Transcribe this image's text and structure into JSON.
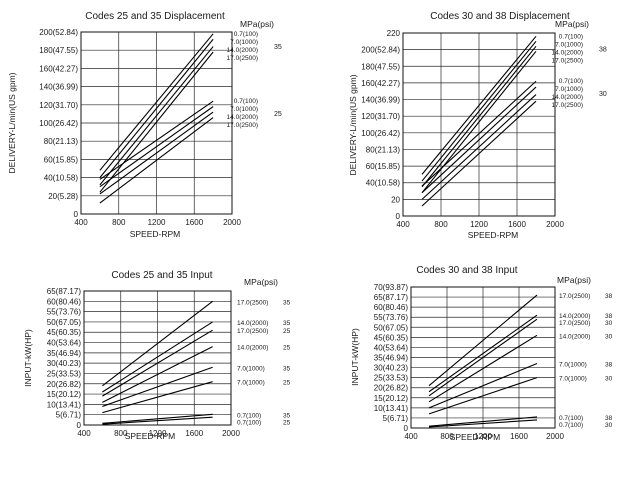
{
  "chart_data": [
    {
      "type": "line",
      "title": "Codes 25 and 35 Displacement",
      "xlabel": "SPEED-RPM",
      "ylabel": "DELIVERY-L/min(US gpm)",
      "xlim": [
        400,
        2000
      ],
      "ylim": [
        0,
        200
      ],
      "x_ticks": [
        "400",
        "800",
        "1200",
        "1600",
        "2000"
      ],
      "y_ticks": [
        "0",
        "20(5.28)",
        "40(10.58)",
        "60(15.85)",
        "80(21.13)",
        "100(26.42)",
        "120(31.70)",
        "140(36.99)",
        "160(42.27)",
        "180(47.55)",
        "200(52.84)"
      ],
      "legend_header": "MPa(psi)",
      "grid": true,
      "groups": [
        {
          "code": "35",
          "labels": [
            "0.7(100)",
            "7.0(1000)",
            "14.0(2000)",
            "17.0(2500)"
          ]
        },
        {
          "code": "25",
          "labels": [
            "0.7(100)",
            "7.0(1000)",
            "14.0(2000)",
            "17.0(2500)"
          ]
        }
      ],
      "series": [
        {
          "group": "35",
          "x": [
            600,
            1800
          ],
          "y": [
            48,
            198
          ]
        },
        {
          "group": "35",
          "x": [
            600,
            1800
          ],
          "y": [
            40,
            192
          ]
        },
        {
          "group": "35",
          "x": [
            600,
            1800
          ],
          "y": [
            32,
            184
          ]
        },
        {
          "group": "35",
          "x": [
            600,
            1800
          ],
          "y": [
            24,
            178
          ]
        },
        {
          "group": "25",
          "x": [
            600,
            1800
          ],
          "y": [
            38,
            124
          ]
        },
        {
          "group": "25",
          "x": [
            600,
            1800
          ],
          "y": [
            30,
            118
          ]
        },
        {
          "group": "25",
          "x": [
            600,
            1800
          ],
          "y": [
            22,
            112
          ]
        },
        {
          "group": "25",
          "x": [
            600,
            1800
          ],
          "y": [
            12,
            106
          ]
        }
      ]
    },
    {
      "type": "line",
      "title": "Codes 30 and 38 Displacement",
      "xlabel": "SPEED-RPM",
      "ylabel": "DELIVERY-L/min(US gpm)",
      "xlim": [
        400,
        2000
      ],
      "ylim": [
        0,
        220
      ],
      "x_ticks": [
        "400",
        "800",
        "1200",
        "1600",
        "2000"
      ],
      "y_ticks": [
        "0",
        "20",
        "40(10.58)",
        "60(15.85)",
        "80(21.13)",
        "100(26.42)",
        "120(31.70)",
        "140(36.99)",
        "160(42.27)",
        "180(47.55)",
        "200(52.84)",
        "220"
      ],
      "legend_header": "MPa(psi)",
      "grid": true,
      "groups": [
        {
          "code": "38",
          "labels": [
            "0.7(100)",
            "7.0(1000)",
            "14.0(2000)",
            "17.0(2500)"
          ]
        },
        {
          "code": "30",
          "labels": [
            "0.7(100)",
            "7.0(1000)",
            "14.0(2000)",
            "17.0(2500)"
          ]
        }
      ],
      "series": [
        {
          "group": "38",
          "x": [
            600,
            1800
          ],
          "y": [
            50,
            216
          ]
        },
        {
          "group": "38",
          "x": [
            600,
            1800
          ],
          "y": [
            42,
            210
          ]
        },
        {
          "group": "38",
          "x": [
            600,
            1800
          ],
          "y": [
            35,
            204
          ]
        },
        {
          "group": "38",
          "x": [
            600,
            1800
          ],
          "y": [
            28,
            198
          ]
        },
        {
          "group": "30",
          "x": [
            600,
            1800
          ],
          "y": [
            36,
            162
          ]
        },
        {
          "group": "30",
          "x": [
            600,
            1800
          ],
          "y": [
            28,
            155
          ]
        },
        {
          "group": "30",
          "x": [
            600,
            1800
          ],
          "y": [
            20,
            146
          ]
        },
        {
          "group": "30",
          "x": [
            600,
            1800
          ],
          "y": [
            12,
            138
          ]
        }
      ]
    },
    {
      "type": "line",
      "title": "Codes 25 and 35 Input",
      "xlabel": "SPEED-RPM",
      "ylabel": "INPUT-kW(HP)",
      "xlim": [
        400,
        2000
      ],
      "ylim": [
        0,
        65
      ],
      "x_ticks": [
        "400",
        "800",
        "1200",
        "1600",
        "2000"
      ],
      "y_ticks": [
        "0",
        "5(6.71)",
        "10(13.41)",
        "15(20.12)",
        "20(26.82)",
        "25(33.53)",
        "30(40.23)",
        "35(46.94)",
        "40(53.64)",
        "45(60.35)",
        "50(67.05)",
        "55(73.76)",
        "60(80.46)",
        "65(87.17)"
      ],
      "legend_header": "MPa(psi)",
      "grid": true,
      "line_labels": [
        "17.0(2500)",
        "14.0(2000)",
        "17.0(2500)",
        "14.0(2000)",
        "7.0(1000)",
        "7.0(1000)",
        "0.7(100)",
        "0.7(100)"
      ],
      "line_codes": [
        "35",
        "35",
        "25",
        "25",
        "35",
        "25",
        "35",
        "25"
      ],
      "series": [
        {
          "x": [
            600,
            1800
          ],
          "y": [
            19,
            60
          ]
        },
        {
          "x": [
            600,
            1800
          ],
          "y": [
            16,
            50
          ]
        },
        {
          "x": [
            600,
            1800
          ],
          "y": [
            14,
            46
          ]
        },
        {
          "x": [
            600,
            1800
          ],
          "y": [
            11,
            38
          ]
        },
        {
          "x": [
            600,
            1800
          ],
          "y": [
            9,
            28
          ]
        },
        {
          "x": [
            600,
            1800
          ],
          "y": [
            6,
            21
          ]
        },
        {
          "x": [
            600,
            1800
          ],
          "y": [
            0.8,
            5.2
          ]
        },
        {
          "x": [
            600,
            1800
          ],
          "y": [
            0.4,
            3.8
          ]
        }
      ]
    },
    {
      "type": "line",
      "title": "Codes 30 and 38 Input",
      "xlabel": "SPEED-RPM",
      "ylabel": "INPUT-kW(HP)",
      "xlim": [
        400,
        2000
      ],
      "ylim": [
        0,
        70
      ],
      "x_ticks": [
        "400",
        "800",
        "1200",
        "1600",
        "2000"
      ],
      "y_ticks": [
        "0",
        "5(6.71)",
        "10(13.41)",
        "15(20.12)",
        "20(26.82)",
        "25(33.53)",
        "30(40.23)",
        "35(46.94)",
        "40(53.64)",
        "45(60.35)",
        "50(67.05)",
        "55(73.76)",
        "60(80.46)",
        "65(87.17)",
        "70(93.87)"
      ],
      "legend_header": "MPa(psi)",
      "grid": true,
      "line_labels": [
        "17.0(2500)",
        "14.0(2000)",
        "17.0(2500)",
        "14.0(2000)",
        "7.0(1000)",
        "7.0(1000)",
        "0.7(100)",
        "0.7(100)"
      ],
      "line_codes": [
        "38",
        "38",
        "30",
        "30",
        "38",
        "30",
        "38",
        "30"
      ],
      "series": [
        {
          "x": [
            600,
            1800
          ],
          "y": [
            21,
            66
          ]
        },
        {
          "x": [
            600,
            1800
          ],
          "y": [
            18,
            56
          ]
        },
        {
          "x": [
            600,
            1800
          ],
          "y": [
            16,
            54
          ]
        },
        {
          "x": [
            600,
            1800
          ],
          "y": [
            13,
            46
          ]
        },
        {
          "x": [
            600,
            1800
          ],
          "y": [
            10,
            32
          ]
        },
        {
          "x": [
            600,
            1800
          ],
          "y": [
            7,
            25
          ]
        },
        {
          "x": [
            600,
            1800
          ],
          "y": [
            0.9,
            5.5
          ]
        },
        {
          "x": [
            600,
            1800
          ],
          "y": [
            0.5,
            4.0
          ]
        }
      ]
    }
  ]
}
